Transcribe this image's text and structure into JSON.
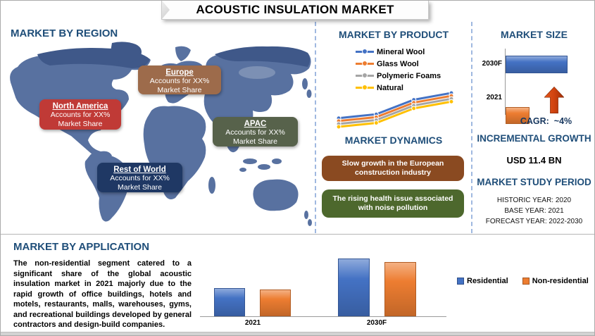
{
  "title": "ACOUSTIC INSULATION MARKET",
  "colors": {
    "heading_blue": "#1F4E79",
    "divider_dash": "#9FB8E0",
    "map_base": "#5871A0",
    "map_dark": "#3F5889",
    "region_north_america": "#C03A36",
    "region_europe": "#9D6B4B",
    "region_apac": "#57624B",
    "region_rest_of_world": "#1F3864",
    "dynamics_brown": "#8A4A21",
    "dynamics_green": "#4D682D",
    "series_blue": "#4472C4",
    "series_orange": "#ED7D31",
    "series_gray": "#A5A5A5",
    "series_yellow": "#FFC000",
    "arrow_red": "#C2410C"
  },
  "region_panel": {
    "heading": "MARKET BY REGION",
    "regions": [
      {
        "name": "North America",
        "line1": "Accounts for XX%",
        "line2": "Market Share",
        "color": "#C03A36"
      },
      {
        "name": "Europe",
        "line1": "Accounts for XX%",
        "line2": "Market Share",
        "color": "#9D6B4B"
      },
      {
        "name": "APAC",
        "line1": "Accounts for XX%",
        "line2": "Market Share",
        "color": "#57624B"
      },
      {
        "name": "Rest of World",
        "line1": "Accounts for XX%",
        "line2": "Market Share",
        "color": "#1F3864"
      }
    ]
  },
  "product_panel": {
    "heading": "MARKET BY PRODUCT"
  },
  "dynamics_panel": {
    "heading": "MARKET DYNAMICS",
    "items": [
      {
        "text": "Slow growth in the European construction industry",
        "color": "#8A4A21"
      },
      {
        "text": "The rising health issue associated with noise pollution",
        "color": "#4D682D"
      }
    ]
  },
  "market_size_panel": {
    "heading": "MARKET SIZE",
    "cagr_label": "CAGR:",
    "cagr_value": "~4%",
    "incremental_heading": "INCREMENTAL GROWTH",
    "incremental_value": "USD 11.4 BN",
    "study_period_heading": "MARKET STUDY PERIOD",
    "study_period_lines": [
      "HISTORIC YEAR: 2020",
      "BASE YEAR: 2021",
      "FORECAST YEAR: 2022-2030"
    ]
  },
  "application_panel": {
    "heading": "MARKET BY APPLICATION",
    "paragraph": "The non-residential segment catered to a significant share of the global acoustic insulation market in 2021 majorly due to the rapid growth of office buildings, hotels and motels, restaurants, malls, warehouses, gyms, and recreational buildings developed by general contractors and design-build companies."
  },
  "chart_data": [
    {
      "id": "market-by-product",
      "type": "line",
      "title": "MARKET BY PRODUCT",
      "x": [
        1,
        2,
        3,
        4
      ],
      "series": [
        {
          "name": "Mineral Wool",
          "color": "#4472C4",
          "values": [
            2.05,
            2.25,
            3.0,
            3.35
          ]
        },
        {
          "name": "Glass Wool",
          "color": "#ED7D31",
          "values": [
            1.9,
            2.1,
            2.85,
            3.2
          ]
        },
        {
          "name": "Polymeric Foams",
          "color": "#A5A5A5",
          "values": [
            1.75,
            1.95,
            2.7,
            3.05
          ]
        },
        {
          "name": "Natural",
          "color": "#FFC000",
          "values": [
            1.6,
            1.8,
            2.55,
            2.9
          ]
        }
      ],
      "legend_position": "top",
      "grid": false,
      "note": "No axes or numeric labels shown; values are relative estimates of line heights."
    },
    {
      "id": "market-size",
      "type": "bar",
      "orientation": "horizontal",
      "title": "MARKET SIZE",
      "categories": [
        "2030F",
        "2021"
      ],
      "values": [
        88,
        34
      ],
      "colors": [
        "#4472C4",
        "#ED7D31"
      ],
      "grid": false,
      "note": "No value axis shown; bar lengths are relative estimates."
    },
    {
      "id": "market-by-application",
      "type": "bar",
      "title": "MARKET BY APPLICATION",
      "categories": [
        "2021",
        "2030F"
      ],
      "series": [
        {
          "name": "Residential",
          "color": "#4472C4",
          "values": [
            40,
            82
          ]
        },
        {
          "name": "Non-residential",
          "color": "#ED7D31",
          "values": [
            38,
            77
          ]
        }
      ],
      "legend_position": "right",
      "grid": false,
      "note": "No value axis shown; bar heights are relative estimates."
    }
  ]
}
